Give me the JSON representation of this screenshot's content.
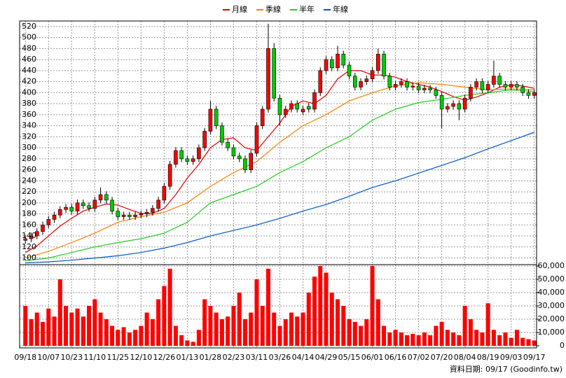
{
  "chart_data": {
    "type": "candlestick",
    "legend_position": "top",
    "x": [
      0,
      1,
      2,
      3,
      4,
      5,
      6,
      7,
      8,
      9,
      10,
      11,
      12,
      13,
      14,
      15,
      16,
      17,
      18,
      19,
      20,
      21,
      22,
      23,
      24,
      25,
      26,
      27,
      28,
      29,
      30,
      31,
      32,
      33,
      34,
      35,
      36,
      37,
      38,
      39,
      40,
      41,
      42,
      43,
      44,
      45,
      46,
      47,
      48,
      49,
      50,
      51,
      52,
      53,
      54,
      55,
      56,
      57,
      58,
      59,
      60,
      61,
      62,
      63,
      64,
      65,
      66,
      67,
      68,
      69,
      70,
      71,
      72,
      73,
      74,
      75,
      76,
      77,
      78,
      79,
      80,
      81,
      82,
      83,
      84,
      85,
      86,
      87,
      88
    ],
    "open": [
      132,
      135,
      140,
      148,
      160,
      170,
      178,
      188,
      192,
      185,
      200,
      195,
      190,
      205,
      215,
      205,
      185,
      175,
      178,
      175,
      178,
      180,
      183,
      190,
      205,
      230,
      270,
      295,
      280,
      275,
      280,
      300,
      330,
      370,
      340,
      310,
      300,
      285,
      280,
      260,
      290,
      340,
      370,
      480,
      390,
      360,
      370,
      380,
      365,
      375,
      370,
      400,
      440,
      460,
      445,
      470,
      450,
      430,
      410,
      420,
      425,
      440,
      470,
      430,
      410,
      415,
      420,
      410,
      412,
      405,
      408,
      405,
      395,
      370,
      375,
      380,
      370,
      390,
      410,
      420,
      405,
      415,
      430,
      415,
      410,
      415,
      410,
      400,
      395
    ],
    "high": [
      141,
      146,
      154,
      166,
      176,
      184,
      194,
      198,
      198,
      206,
      206,
      201,
      211,
      228,
      221,
      211,
      191,
      184,
      184,
      184,
      186,
      189,
      196,
      211,
      236,
      276,
      301,
      301,
      286,
      286,
      306,
      336,
      385,
      376,
      346,
      316,
      306,
      291,
      286,
      296,
      346,
      376,
      525,
      490,
      396,
      376,
      386,
      386,
      376,
      381,
      406,
      446,
      466,
      466,
      485,
      476,
      456,
      436,
      426,
      431,
      446,
      480,
      476,
      436,
      421,
      426,
      426,
      418,
      418,
      414,
      414,
      411,
      401,
      381,
      386,
      386,
      396,
      416,
      426,
      426,
      421,
      458,
      436,
      421,
      421,
      421,
      416,
      406,
      406
    ],
    "low": [
      126,
      129,
      134,
      142,
      154,
      164,
      172,
      182,
      179,
      179,
      189,
      184,
      184,
      199,
      199,
      179,
      169,
      169,
      169,
      169,
      172,
      174,
      177,
      184,
      199,
      224,
      264,
      274,
      269,
      269,
      274,
      294,
      324,
      334,
      304,
      294,
      279,
      274,
      254,
      254,
      284,
      334,
      364,
      384,
      340,
      354,
      364,
      364,
      359,
      364,
      364,
      394,
      434,
      439,
      439,
      444,
      424,
      404,
      404,
      414,
      419,
      434,
      424,
      404,
      404,
      409,
      404,
      404,
      399,
      399,
      399,
      389,
      335,
      364,
      369,
      350,
      364,
      384,
      404,
      399,
      399,
      409,
      409,
      404,
      404,
      404,
      394,
      389,
      389
    ],
    "close": [
      135,
      140,
      148,
      160,
      170,
      178,
      188,
      192,
      185,
      200,
      195,
      190,
      205,
      215,
      205,
      185,
      175,
      178,
      175,
      178,
      180,
      183,
      190,
      205,
      230,
      270,
      295,
      280,
      275,
      280,
      300,
      330,
      370,
      340,
      310,
      300,
      285,
      280,
      260,
      290,
      340,
      370,
      480,
      390,
      360,
      370,
      380,
      370,
      370,
      370,
      400,
      440,
      460,
      445,
      470,
      450,
      430,
      410,
      420,
      425,
      440,
      470,
      430,
      410,
      415,
      420,
      410,
      412,
      405,
      408,
      405,
      395,
      370,
      375,
      380,
      370,
      390,
      410,
      420,
      405,
      415,
      430,
      415,
      410,
      415,
      410,
      400,
      395,
      400
    ],
    "up_color": "#ff0000",
    "down_color": "#00cc00",
    "series": [
      {
        "name": "月線",
        "color": "#e00000",
        "x": [
          0,
          2,
          4,
          6,
          8,
          10,
          12,
          14,
          16,
          18,
          20,
          22,
          24,
          26,
          28,
          30,
          32,
          34,
          36,
          38,
          40,
          42,
          44,
          46,
          48,
          50,
          52,
          54,
          56,
          58,
          60,
          62,
          64,
          66,
          68,
          70,
          72,
          74,
          76,
          78,
          80,
          82,
          84,
          86,
          88
        ],
        "values": [
          110,
          122,
          140,
          158,
          172,
          185,
          192,
          198,
          196,
          188,
          181,
          181,
          190,
          215,
          245,
          270,
          300,
          315,
          318,
          300,
          295,
          320,
          345,
          375,
          385,
          380,
          395,
          425,
          440,
          440,
          432,
          432,
          428,
          420,
          415,
          410,
          402,
          393,
          386,
          392,
          400,
          410,
          414,
          412,
          408
        ]
      },
      {
        "name": "季線",
        "color": "#ff8000",
        "x": [
          0,
          4,
          8,
          12,
          16,
          20,
          24,
          28,
          32,
          36,
          40,
          44,
          48,
          52,
          56,
          60,
          64,
          68,
          72,
          76,
          80,
          84,
          88
        ],
        "values": [
          100,
          112,
          128,
          145,
          165,
          175,
          183,
          200,
          230,
          255,
          275,
          310,
          340,
          360,
          385,
          400,
          412,
          418,
          415,
          410,
          405,
          407,
          405
        ]
      },
      {
        "name": "半年",
        "color": "#22cc22",
        "x": [
          0,
          4,
          8,
          12,
          16,
          20,
          24,
          28,
          32,
          36,
          40,
          44,
          48,
          52,
          56,
          60,
          64,
          68,
          72,
          76,
          80,
          84,
          88
        ],
        "values": [
          95,
          100,
          110,
          120,
          128,
          135,
          145,
          165,
          200,
          215,
          230,
          255,
          275,
          300,
          320,
          350,
          370,
          382,
          388,
          395,
          400,
          405,
          402
        ]
      },
      {
        "name": "年線",
        "color": "#0055cc",
        "x": [
          0,
          4,
          8,
          12,
          16,
          20,
          24,
          28,
          32,
          36,
          40,
          44,
          48,
          52,
          56,
          60,
          64,
          68,
          72,
          76,
          80,
          84,
          88
        ],
        "values": [
          91,
          93,
          96,
          100,
          104,
          110,
          118,
          128,
          140,
          150,
          160,
          172,
          185,
          197,
          212,
          228,
          240,
          254,
          268,
          282,
          298,
          313,
          328
        ]
      }
    ],
    "volume": {
      "color": "#ff0000",
      "axis": "y2",
      "values": [
        30000,
        20000,
        25000,
        18000,
        28000,
        22000,
        50000,
        30000,
        25000,
        28000,
        22000,
        30000,
        35000,
        25000,
        20000,
        15000,
        12000,
        14000,
        10000,
        12000,
        15000,
        25000,
        20000,
        35000,
        45000,
        58000,
        15000,
        8000,
        4000,
        3000,
        12000,
        35000,
        30000,
        25000,
        20000,
        22000,
        30000,
        40000,
        20000,
        25000,
        50000,
        30000,
        58000,
        25000,
        15000,
        20000,
        25000,
        22000,
        25000,
        40000,
        52000,
        60000,
        55000,
        40000,
        35000,
        30000,
        20000,
        18000,
        15000,
        20000,
        60000,
        35000,
        15000,
        10000,
        12000,
        10000,
        8000,
        9000,
        8000,
        10000,
        8000,
        15000,
        18000,
        12000,
        10000,
        8000,
        30000,
        20000,
        12000,
        10000,
        32000,
        12000,
        8000,
        10000,
        6000,
        12000,
        6000,
        5000,
        4000
      ]
    },
    "xlim": [
      -1,
      88.4
    ],
    "xticks": [
      {
        "value": 0,
        "label": "09/18"
      },
      {
        "value": 4,
        "label": "10/07"
      },
      {
        "value": 8,
        "label": "10/23"
      },
      {
        "value": 12,
        "label": "11/10"
      },
      {
        "value": 16,
        "label": "11/25"
      },
      {
        "value": 20,
        "label": "12/10"
      },
      {
        "value": 24,
        "label": "12/26"
      },
      {
        "value": 28,
        "label": "01/13"
      },
      {
        "value": 32,
        "label": "01/28"
      },
      {
        "value": 36,
        "label": "02/23"
      },
      {
        "value": 40,
        "label": "03/11"
      },
      {
        "value": 44,
        "label": "03/26"
      },
      {
        "value": 48,
        "label": "04/14"
      },
      {
        "value": 52,
        "label": "04/29"
      },
      {
        "value": 56,
        "label": "05/15"
      },
      {
        "value": 60,
        "label": "06/01"
      },
      {
        "value": 64,
        "label": "06/16"
      },
      {
        "value": 68,
        "label": "07/02"
      },
      {
        "value": 72,
        "label": "07/20"
      },
      {
        "value": 76,
        "label": "08/04"
      },
      {
        "value": 80,
        "label": "08/19"
      },
      {
        "value": 84,
        "label": "09/03"
      },
      {
        "value": 88,
        "label": "09/17"
      }
    ],
    "ylim": [
      88,
      530
    ],
    "yticks": [
      100,
      120,
      140,
      160,
      180,
      200,
      220,
      240,
      260,
      280,
      300,
      320,
      340,
      360,
      380,
      400,
      420,
      440,
      460,
      480,
      500,
      520
    ],
    "y2lim": [
      0,
      61600
    ],
    "y2ticks": [
      0,
      {
        "value": 10000,
        "label": "10,000"
      },
      {
        "value": 20000,
        "label": "20,000"
      },
      {
        "value": 30000,
        "label": "30,000"
      },
      {
        "value": 40000,
        "label": "40,000"
      },
      {
        "value": 50000,
        "label": "50,000"
      },
      {
        "value": 60000,
        "label": "60,000"
      }
    ],
    "grid": true,
    "footer": "資料日期: 09/17  (Goodinfo.tw)"
  }
}
